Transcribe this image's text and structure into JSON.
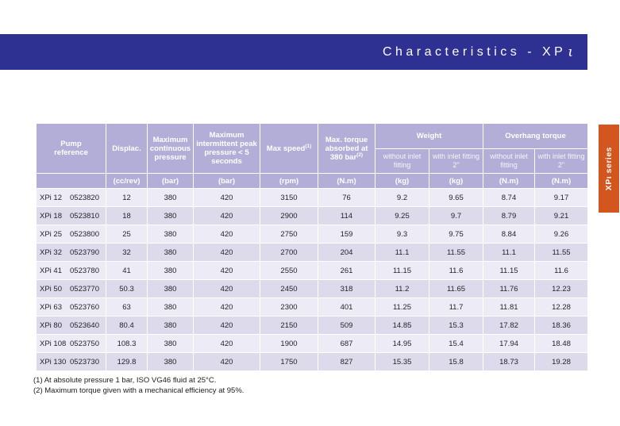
{
  "colors": {
    "title_bar": "#2e3191",
    "side_tab": "#d3561e",
    "table_header": "#b2aed7",
    "row_light": "#edebf5",
    "row_dark": "#dddaeb"
  },
  "header": {
    "title_prefix": "Characteristics - XP",
    "title_script_i": "ι"
  },
  "side_tab": {
    "label": "XPι series"
  },
  "table": {
    "header": {
      "pump_reference": "Pump reference",
      "displacement": "Displac.",
      "max_continuous_pressure": "Maximum continuous pressure",
      "max_intermittent_pressure": "Maximum intermittent peak pressure < 5 seconds",
      "max_speed": "Max speed",
      "max_speed_sup": "(1)",
      "max_torque": "Max. torque absorbed at 380 bar",
      "max_torque_sup": "(2)",
      "weight_group": "Weight",
      "overhang_group": "Overhang torque",
      "sub_without": "without inlet fitting",
      "sub_with": "with inlet fitting 2\"",
      "units": [
        "",
        "(cc/rev)",
        "(bar)",
        "(bar)",
        "(rpm)",
        "(N.m)",
        "(kg)",
        "(kg)",
        "(N.m)",
        "(N.m)"
      ]
    },
    "rows": [
      {
        "name": "XPi 12",
        "code": "0523820",
        "values": [
          "12",
          "380",
          "420",
          "3150",
          "76",
          "9.2",
          "9.65",
          "8.74",
          "9.17"
        ]
      },
      {
        "name": "XPi 18",
        "code": "0523810",
        "values": [
          "18",
          "380",
          "420",
          "2900",
          "114",
          "9.25",
          "9.7",
          "8.79",
          "9.21"
        ]
      },
      {
        "name": "XPi 25",
        "code": "0523800",
        "values": [
          "25",
          "380",
          "420",
          "2750",
          "159",
          "9.3",
          "9.75",
          "8.84",
          "9.26"
        ]
      },
      {
        "name": "XPi 32",
        "code": "0523790",
        "values": [
          "32",
          "380",
          "420",
          "2700",
          "204",
          "11.1",
          "11.55",
          "11.1",
          "11.55"
        ]
      },
      {
        "name": "XPi 41",
        "code": "0523780",
        "values": [
          "41",
          "380",
          "420",
          "2550",
          "261",
          "11.15",
          "11.6",
          "11.15",
          "11.6"
        ]
      },
      {
        "name": "XPi 50",
        "code": "0523770",
        "values": [
          "50.3",
          "380",
          "420",
          "2450",
          "318",
          "11.2",
          "11.65",
          "11.76",
          "12.23"
        ]
      },
      {
        "name": "XPi 63",
        "code": "0523760",
        "values": [
          "63",
          "380",
          "420",
          "2300",
          "401",
          "11.25",
          "11.7",
          "11.81",
          "12.28"
        ]
      },
      {
        "name": "XPi 80",
        "code": "0523640",
        "values": [
          "80.4",
          "380",
          "420",
          "2150",
          "509",
          "14.85",
          "15.3",
          "17.82",
          "18.36"
        ]
      },
      {
        "name": "XPi 108",
        "code": "0523750",
        "values": [
          "108.3",
          "380",
          "420",
          "1900",
          "687",
          "14.95",
          "15.4",
          "17.94",
          "18.48"
        ]
      },
      {
        "name": "XPi 130",
        "code": "0523730",
        "values": [
          "129.8",
          "380",
          "420",
          "1750",
          "827",
          "15.35",
          "15.8",
          "18.73",
          "19.28"
        ]
      }
    ]
  },
  "footnotes": [
    "(1) At absolute pressure 1 bar, ISO VG46 fluid at 25°C.",
    "(2) Maximum torque given with a mechanical efficiency at 95%."
  ]
}
